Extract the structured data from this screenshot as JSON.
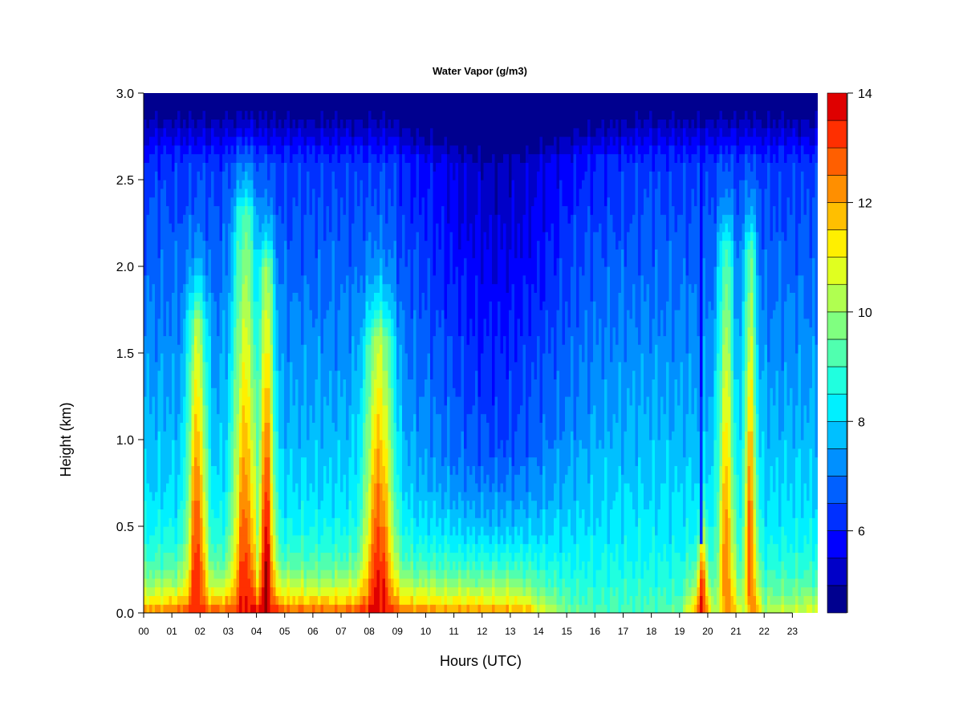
{
  "chart_data": {
    "type": "heatmap",
    "title": "Water Vapor (g/m3)",
    "xlabel": "Hours (UTC)",
    "ylabel": "Height (km)",
    "x_ticks": [
      "00",
      "01",
      "02",
      "03",
      "04",
      "05",
      "06",
      "07",
      "08",
      "09",
      "10",
      "11",
      "12",
      "13",
      "14",
      "15",
      "16",
      "17",
      "18",
      "19",
      "20",
      "21",
      "22",
      "23"
    ],
    "y_ticks": [
      "0.0",
      "0.5",
      "1.0",
      "1.5",
      "2.0",
      "2.5",
      "3.0"
    ],
    "xlim": [
      0,
      23.9
    ],
    "ylim": [
      0,
      3.0
    ],
    "colorbar": {
      "range": [
        4.5,
        14
      ],
      "ticks": [
        "6",
        "8",
        "10",
        "12",
        "14"
      ],
      "tick_values": [
        6,
        8,
        10,
        12,
        14
      ],
      "levels": [
        4.5,
        5,
        5.5,
        6,
        6.5,
        7,
        7.5,
        8,
        8.5,
        9,
        9.5,
        10,
        10.5,
        11,
        11.5,
        12,
        12.5,
        13,
        13.5,
        14
      ],
      "colors": [
        "#00008f",
        "#0000c8",
        "#0000ff",
        "#0030ff",
        "#0060ff",
        "#0090ff",
        "#00c0ff",
        "#00f0ff",
        "#20ffdf",
        "#50ffaf",
        "#80ff80",
        "#b0ff50",
        "#e0ff20",
        "#ffef00",
        "#ffbf00",
        "#ff8f00",
        "#ff5f00",
        "#ff2f00",
        "#df0000",
        "#8f0000"
      ]
    },
    "surface_moisture_g_m3": {
      "hours": [
        0,
        1,
        1.8,
        2.2,
        3,
        3.5,
        4.4,
        5,
        6,
        7,
        8,
        8.7,
        9.2,
        10,
        11,
        12,
        13,
        13.6,
        14,
        15,
        16,
        17,
        18,
        19,
        19.8,
        20.2,
        20.8,
        21.3,
        21.6,
        22,
        23,
        23.9
      ],
      "values": [
        12.4,
        12.8,
        13.3,
        13.0,
        13.2,
        13.6,
        13.9,
        13.2,
        13.0,
        13.0,
        13.6,
        13.6,
        12.8,
        12.6,
        12.4,
        12.3,
        12.2,
        12.0,
        11.0,
        9.6,
        9.2,
        9.3,
        9.3,
        9.3,
        13.8,
        10.2,
        12.4,
        10.2,
        12.6,
        10.4,
        10.6,
        10.8
      ]
    },
    "moist_columns": [
      {
        "hour_start": 1.6,
        "hour_end": 2.2,
        "peak_g_m3": 13.5,
        "top_km": 1.7
      },
      {
        "hour_start": 3.2,
        "hour_end": 4.0,
        "peak_g_m3": 13.0,
        "top_km": 2.3
      },
      {
        "hour_start": 4.1,
        "hour_end": 4.6,
        "peak_g_m3": 14.0,
        "top_km": 2.0
      },
      {
        "hour_start": 7.9,
        "hour_end": 8.8,
        "peak_g_m3": 13.5,
        "top_km": 1.6
      },
      {
        "hour_start": 19.7,
        "hour_end": 19.95,
        "peak_g_m3": 14.0,
        "top_km": 0.35
      },
      {
        "hour_start": 20.4,
        "hour_end": 20.9,
        "peak_g_m3": 12.5,
        "top_km": 2.1
      },
      {
        "hour_start": 21.3,
        "hour_end": 21.7,
        "peak_g_m3": 13.0,
        "top_km": 2.1
      }
    ],
    "dry_streaks": [
      {
        "hour": 19.8,
        "min_g_m3": 5.5,
        "from_km": 0.4,
        "to_km": 3.0
      }
    ]
  }
}
